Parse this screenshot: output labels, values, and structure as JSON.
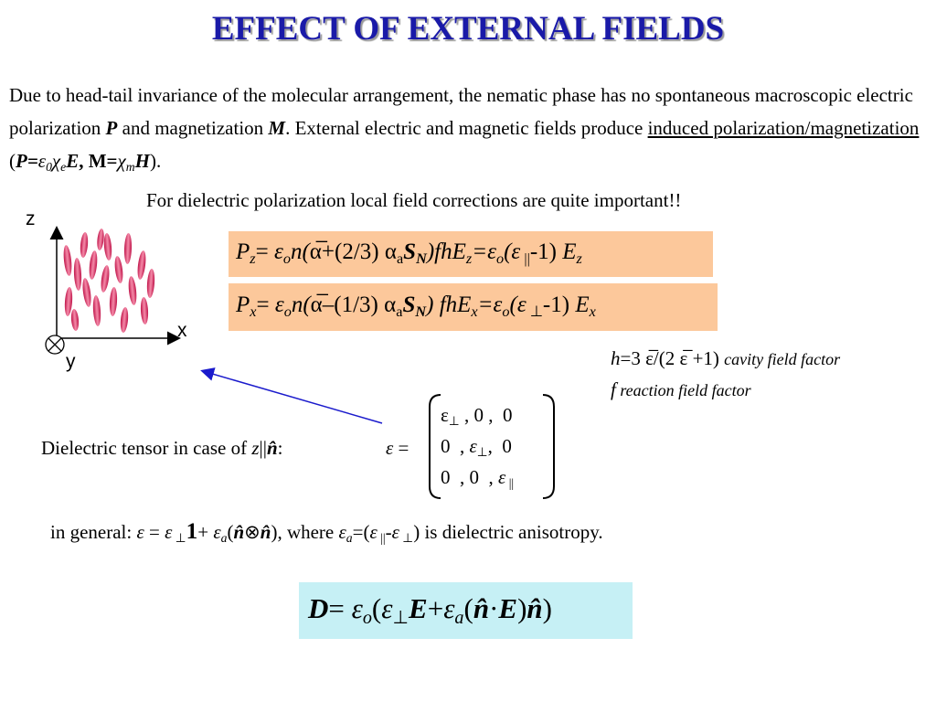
{
  "title": "EFFECT OF EXTERNAL FIELDS",
  "intro": [
    "Due to head-tail invariance of the molecular arrangement, the nematic phase has no spontaneous macroscopic electric polarization ",
    "P",
    " and magnetization ",
    "M",
    ". External electric and magnetic fields produce ",
    "induced polarization/magnetization",
    " (",
    "P=",
    "ε",
    "0",
    "χ",
    "e",
    "E",
    ", M=",
    "χ",
    "m",
    "H",
    ")."
  ],
  "note": "For dielectric polarization local field corrections are quite important!!",
  "axes": {
    "z": "z",
    "x": "x",
    "y": "y"
  },
  "pz": [
    "P",
    "z",
    "= ",
    "ε",
    "o",
    "n(",
    "α̅",
    "+(2/3) ",
    "α",
    "a",
    "S",
    "N",
    ")fhE",
    "z",
    "=",
    "ε",
    "o",
    "(",
    "ε",
    " ||",
    "-1) ",
    "E",
    "z"
  ],
  "px": [
    "P",
    "x",
    "= ",
    "ε",
    "o",
    "n(",
    "α̅",
    "–(1/3) ",
    "α",
    "a",
    "S",
    "N",
    ") fhE",
    "x",
    "=",
    "ε",
    "o",
    "(",
    "ε",
    " ⊥",
    "-1) ",
    "E",
    "x"
  ],
  "h": [
    "h",
    "=3 ",
    "ε̅",
    "/(2 ",
    "ε̅",
    " +1) ",
    "cavity field factor"
  ],
  "f": [
    "f",
    " reaction field factor"
  ],
  "tensor": [
    "Dielectric tensor in case of ",
    "z",
    "||",
    "n̂",
    ":"
  ],
  "eps": [
    "ε",
    " ="
  ],
  "matrix": [
    [
      "ε",
      "⊥",
      " , 0 ,  0"
    ],
    [
      "0  , ",
      "ε",
      "⊥",
      ",  0"
    ],
    [
      "0  , 0  , ",
      "ε",
      " ||"
    ]
  ],
  "general": [
    "in general",
    ": ",
    "ε",
    " = ",
    "ε",
    " ⊥",
    "1",
    "+ ",
    "ε",
    "a",
    "(",
    "n̂",
    "⊗",
    "n̂",
    "), where ",
    "ε",
    "a",
    "=(",
    "ε",
    " ||",
    "-",
    "ε",
    " ⊥",
    ")",
    " is dielectric anisotropy."
  ],
  "d": [
    "D",
    "= ",
    "ε",
    "o",
    "(",
    "ε",
    "⊥",
    "E",
    "+",
    "ε",
    "a",
    "(",
    "n̂",
    "·",
    "E",
    ")",
    "n̂",
    ")"
  ]
}
